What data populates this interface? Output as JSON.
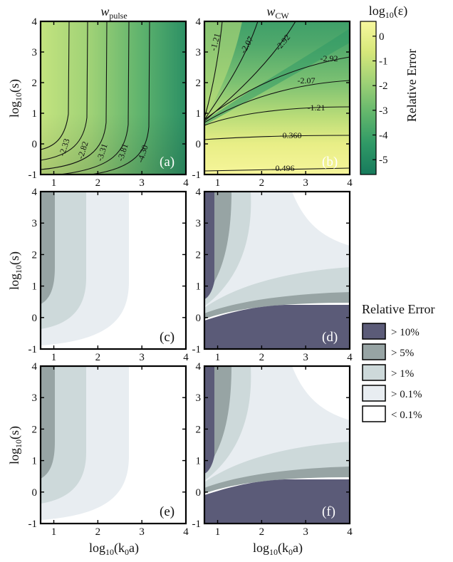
{
  "figure": {
    "col_titles": [
      {
        "sym": "w",
        "sub": "pulse"
      },
      {
        "sym": "w",
        "sub": "CW"
      }
    ],
    "ylabel": {
      "pre": "log",
      "sub": "10",
      "post": "(s)"
    },
    "xlabel": {
      "pre": "log",
      "sub": "10",
      "mid": "(k",
      "sub2": "0",
      "post": "a)"
    },
    "colorbar": {
      "title": {
        "pre": "log",
        "sub": "10",
        "post": "(ε)"
      },
      "label": "Relative Error",
      "ticks": [
        "0",
        "-1",
        "-2",
        "-3",
        "-4",
        "-5"
      ],
      "colors": [
        "#f6f59a",
        "#d6e77a",
        "#9ed176",
        "#62b66c",
        "#2f9966",
        "#177a5c"
      ]
    },
    "legend": {
      "title": "Relative Error",
      "items": [
        {
          "label": "> 10%",
          "color": "#5b5b78"
        },
        {
          "label": "> 5%",
          "color": "#97a4a4"
        },
        {
          "label": "> 1%",
          "color": "#cdd9da"
        },
        {
          "label": "> 0.1%",
          "color": "#e8edf1"
        },
        {
          "label": "< 0.1%",
          "color": "#ffffff"
        }
      ]
    }
  },
  "chart_data": [
    {
      "type": "heatmap",
      "panel": "(a)",
      "xlim": [
        0.7,
        4
      ],
      "ylim": [
        -1,
        4
      ],
      "xticks": [
        "1",
        "2",
        "3",
        "4"
      ],
      "yticks": [
        "-1",
        "0",
        "1",
        "2",
        "3",
        "4"
      ],
      "contours": [
        {
          "label": "-2.33",
          "x": 1.2
        },
        {
          "label": "-2.82",
          "x": 1.62
        },
        {
          "label": "-3.31",
          "x": 2.05
        },
        {
          "label": "-3.81",
          "x": 2.55
        },
        {
          "label": "-4.30",
          "x": 2.98
        }
      ]
    },
    {
      "type": "heatmap",
      "panel": "(b)",
      "xlim": [
        0.7,
        4
      ],
      "ylim": [
        -1,
        4
      ],
      "xticks": [
        "1",
        "2",
        "3",
        "4"
      ],
      "yticks": [
        "-1",
        "0",
        "1",
        "2",
        "3",
        "4"
      ],
      "contours": [
        {
          "label": "0.496",
          "level": -0.85
        },
        {
          "label": "-0.360",
          "level": 0.2
        },
        {
          "label": "-1.21",
          "level": 1.2
        },
        {
          "label": "-2.07",
          "level": 1.85
        },
        {
          "label": "-2.92",
          "level": 2.5
        },
        {
          "label": "-1.21",
          "level": 3.6
        },
        {
          "label": "-2.07",
          "level": 3.6
        },
        {
          "label": "-2.92",
          "level": 3.6
        }
      ]
    },
    {
      "type": "heatmap",
      "panel": "(c)",
      "xlim": [
        0.7,
        4
      ],
      "ylim": [
        -1,
        4
      ],
      "xticks": [
        "1",
        "2",
        "3",
        "4"
      ],
      "yticks": [
        "-1",
        "0",
        "1",
        "2",
        "3",
        "4"
      ],
      "regions": [
        ">5%",
        ">1%",
        ">0.1%",
        "<0.1%"
      ]
    },
    {
      "type": "heatmap",
      "panel": "(d)",
      "xlim": [
        0.7,
        4
      ],
      "ylim": [
        -1,
        4
      ],
      "xticks": [
        "1",
        "2",
        "3",
        "4"
      ],
      "yticks": [
        "-1",
        "0",
        "1",
        "2",
        "3",
        "4"
      ],
      "regions": [
        ">10%",
        ">5%",
        ">1%",
        ">0.1%",
        "<0.1%"
      ]
    },
    {
      "type": "heatmap",
      "panel": "(e)",
      "xlim": [
        0.7,
        4
      ],
      "ylim": [
        -1,
        4
      ],
      "xticks": [
        "1",
        "2",
        "3",
        "4"
      ],
      "yticks": [
        "-1",
        "0",
        "1",
        "2",
        "3",
        "4"
      ],
      "regions": [
        ">5%",
        ">1%",
        ">0.1%",
        "<0.1%"
      ]
    },
    {
      "type": "heatmap",
      "panel": "(f)",
      "xlim": [
        0.7,
        4
      ],
      "ylim": [
        -1,
        4
      ],
      "xticks": [
        "1",
        "2",
        "3",
        "4"
      ],
      "yticks": [
        "-1",
        "0",
        "1",
        "2",
        "3",
        "4"
      ],
      "regions": [
        ">10%",
        ">5%",
        ">1%",
        ">0.1%",
        "<0.1%"
      ]
    }
  ]
}
